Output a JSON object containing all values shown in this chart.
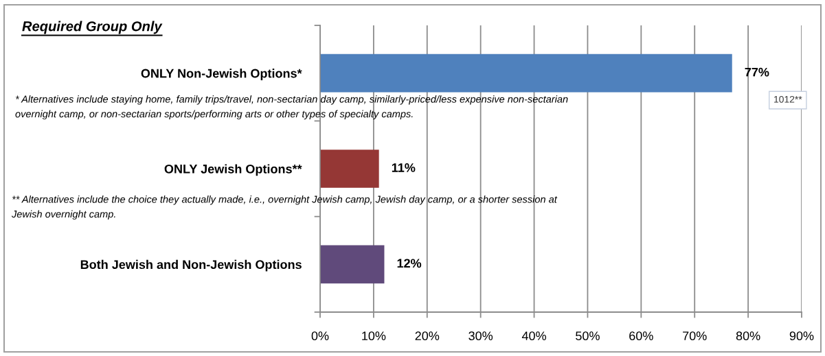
{
  "chart_data": {
    "type": "bar",
    "orientation": "horizontal",
    "title": "Required Group Only",
    "categories": [
      "ONLY Non-Jewish Options*",
      "ONLY Jewish Options**",
      "Both Jewish and Non-Jewish Options"
    ],
    "values": [
      77,
      11,
      12
    ],
    "colors": [
      "#4f81bd",
      "#953735",
      "#604a7b"
    ],
    "value_labels": [
      "77%",
      "11%",
      "12%"
    ],
    "xlim": [
      0,
      90
    ],
    "xticks": [
      {
        "value": 0,
        "label": "0%"
      },
      {
        "value": 10,
        "label": "10%"
      },
      {
        "value": 20,
        "label": "20%"
      },
      {
        "value": 30,
        "label": "30%"
      },
      {
        "value": 40,
        "label": "40%"
      },
      {
        "value": 50,
        "label": "50%"
      },
      {
        "value": 60,
        "label": "60%"
      },
      {
        "value": 70,
        "label": "70%"
      },
      {
        "value": 80,
        "label": "80%"
      },
      {
        "value": 90,
        "label": "90%"
      }
    ],
    "grid": "x",
    "annotations": [
      "* Alternatives include staying home, family trips/travel, non-sectarian day camp, similarly-priced/less expensive non-sectarian\novernight camp, or non-sectarian sports/performing arts or other types of specialty camps.",
      "** Alternatives include the choice they actually made, i.e., overnight Jewish camp, Jewish day camp, or a shorter session at\nJewish overnight camp.",
      "1012**"
    ]
  }
}
